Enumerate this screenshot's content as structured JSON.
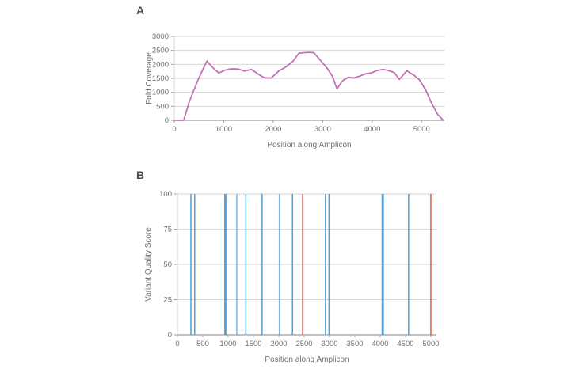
{
  "panels": {
    "a": {
      "label": "A"
    },
    "b": {
      "label": "B"
    }
  },
  "chart_data": [
    {
      "panel_label": "A",
      "type": "line",
      "title": "",
      "xlabel": "Position along Amplicon",
      "ylabel": "Fold Coverage",
      "xlim": [
        0,
        5460
      ],
      "ylim": [
        0,
        3000
      ],
      "xticks": [
        0,
        1000,
        2000,
        3000,
        4000,
        5000
      ],
      "yticks": [
        0,
        500,
        1000,
        1500,
        2000,
        2500,
        3000
      ],
      "grid": true,
      "line_color": "#c173b5",
      "grid_color": "#d6d6d6",
      "axis_color": "#9e9e9e",
      "text_color": "#6f6f6f",
      "points": [
        [
          0,
          0
        ],
        [
          190,
          0
        ],
        [
          300,
          650
        ],
        [
          480,
          1450
        ],
        [
          660,
          2120
        ],
        [
          780,
          1880
        ],
        [
          900,
          1690
        ],
        [
          1020,
          1790
        ],
        [
          1150,
          1840
        ],
        [
          1300,
          1830
        ],
        [
          1420,
          1760
        ],
        [
          1560,
          1820
        ],
        [
          1700,
          1650
        ],
        [
          1820,
          1520
        ],
        [
          1960,
          1510
        ],
        [
          2110,
          1760
        ],
        [
          2260,
          1910
        ],
        [
          2400,
          2110
        ],
        [
          2520,
          2400
        ],
        [
          2700,
          2430
        ],
        [
          2820,
          2420
        ],
        [
          2960,
          2130
        ],
        [
          3100,
          1840
        ],
        [
          3200,
          1560
        ],
        [
          3290,
          1120
        ],
        [
          3400,
          1410
        ],
        [
          3520,
          1540
        ],
        [
          3620,
          1510
        ],
        [
          3740,
          1570
        ],
        [
          3860,
          1660
        ],
        [
          3980,
          1690
        ],
        [
          4100,
          1780
        ],
        [
          4220,
          1820
        ],
        [
          4350,
          1770
        ],
        [
          4450,
          1700
        ],
        [
          4550,
          1460
        ],
        [
          4700,
          1770
        ],
        [
          4840,
          1620
        ],
        [
          4960,
          1440
        ],
        [
          5080,
          1090
        ],
        [
          5200,
          620
        ],
        [
          5320,
          220
        ],
        [
          5440,
          0
        ]
      ]
    },
    {
      "panel_label": "B",
      "type": "bar",
      "title": "",
      "xlabel": "Position along Amplicon",
      "ylabel": "Variant Quality Score",
      "xlim": [
        0,
        5110
      ],
      "ylim": [
        0,
        100
      ],
      "xticks": [
        0,
        500,
        1000,
        1500,
        2000,
        2500,
        3000,
        3500,
        4000,
        4500,
        5000
      ],
      "yticks": [
        0,
        25,
        50,
        75,
        100
      ],
      "grid": true,
      "grid_color": "#d6d6d6",
      "axis_color": "#9e9e9e",
      "text_color": "#6f6f6f",
      "colors": {
        "blue": "#4f9fd6",
        "lightblue": "#7ab5e0",
        "red": "#e2584b"
      },
      "bars": [
        {
          "x": 265,
          "value": 100,
          "color": "blue"
        },
        {
          "x": 340,
          "value": 100,
          "color": "blue"
        },
        {
          "x": 945,
          "value": 100,
          "color": "blue",
          "wide": true
        },
        {
          "x": 1170,
          "value": 100,
          "color": "lightblue"
        },
        {
          "x": 1350,
          "value": 100,
          "color": "blue"
        },
        {
          "x": 1670,
          "value": 100,
          "color": "blue"
        },
        {
          "x": 2010,
          "value": 100,
          "color": "lightblue"
        },
        {
          "x": 2270,
          "value": 100,
          "color": "blue"
        },
        {
          "x": 2470,
          "value": 100,
          "color": "red"
        },
        {
          "x": 2920,
          "value": 100,
          "color": "blue"
        },
        {
          "x": 2990,
          "value": 100,
          "color": "blue"
        },
        {
          "x": 4050,
          "value": 100,
          "color": "blue",
          "wide": true
        },
        {
          "x": 4560,
          "value": 100,
          "color": "blue"
        },
        {
          "x": 5000,
          "value": 100,
          "color": "red"
        }
      ]
    }
  ]
}
